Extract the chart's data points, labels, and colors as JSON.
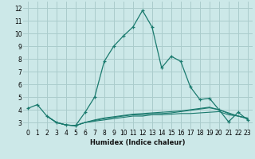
{
  "xlabel": "Humidex (Indice chaleur)",
  "bg_color": "#cce8e8",
  "grid_color": "#aacccc",
  "line_color": "#1a7a6e",
  "xlim": [
    -0.5,
    23.5
  ],
  "ylim": [
    2.5,
    12.5
  ],
  "xticks": [
    0,
    1,
    2,
    3,
    4,
    5,
    6,
    7,
    8,
    9,
    10,
    11,
    12,
    13,
    14,
    15,
    16,
    17,
    18,
    19,
    20,
    21,
    22,
    23
  ],
  "yticks": [
    3,
    4,
    5,
    6,
    7,
    8,
    9,
    10,
    11,
    12
  ],
  "main_x": [
    0,
    1,
    2,
    3,
    4,
    5,
    6,
    7,
    8,
    9,
    10,
    11,
    12,
    13,
    14,
    15,
    16,
    17,
    18,
    19,
    20,
    21,
    22,
    23
  ],
  "main_y": [
    4.1,
    4.4,
    3.5,
    3.0,
    2.8,
    2.75,
    3.8,
    5.0,
    7.8,
    9.0,
    9.8,
    10.5,
    11.8,
    10.5,
    7.3,
    8.2,
    7.8,
    5.8,
    4.8,
    4.9,
    4.0,
    3.05,
    3.8,
    3.2
  ],
  "line2_x": [
    2,
    3,
    4,
    5,
    6,
    7,
    8,
    9,
    10,
    11,
    12,
    13,
    14,
    15,
    16,
    17,
    18,
    19,
    20,
    21,
    22,
    23
  ],
  "line2_y": [
    3.5,
    3.0,
    2.8,
    2.75,
    3.0,
    3.1,
    3.2,
    3.3,
    3.4,
    3.5,
    3.5,
    3.6,
    3.6,
    3.65,
    3.7,
    3.7,
    3.75,
    3.8,
    3.85,
    3.6,
    3.5,
    3.3
  ],
  "line3_x": [
    2,
    3,
    4,
    5,
    6,
    7,
    8,
    9,
    10,
    11,
    12,
    13,
    14,
    15,
    16,
    17,
    18,
    19,
    20,
    21,
    22,
    23
  ],
  "line3_y": [
    3.5,
    3.0,
    2.8,
    2.75,
    3.0,
    3.15,
    3.3,
    3.4,
    3.5,
    3.6,
    3.6,
    3.7,
    3.7,
    3.75,
    3.85,
    3.95,
    4.05,
    4.15,
    4.0,
    3.7,
    3.5,
    3.3
  ],
  "line4_x": [
    2,
    3,
    4,
    5,
    6,
    7,
    8,
    9,
    10,
    11,
    12,
    13,
    14,
    15,
    16,
    17,
    18,
    19,
    20,
    21,
    22,
    23
  ],
  "line4_y": [
    3.5,
    3.0,
    2.8,
    2.75,
    3.0,
    3.2,
    3.35,
    3.45,
    3.55,
    3.65,
    3.7,
    3.75,
    3.8,
    3.85,
    3.9,
    4.0,
    4.1,
    4.2,
    4.0,
    3.75,
    3.5,
    3.35
  ]
}
